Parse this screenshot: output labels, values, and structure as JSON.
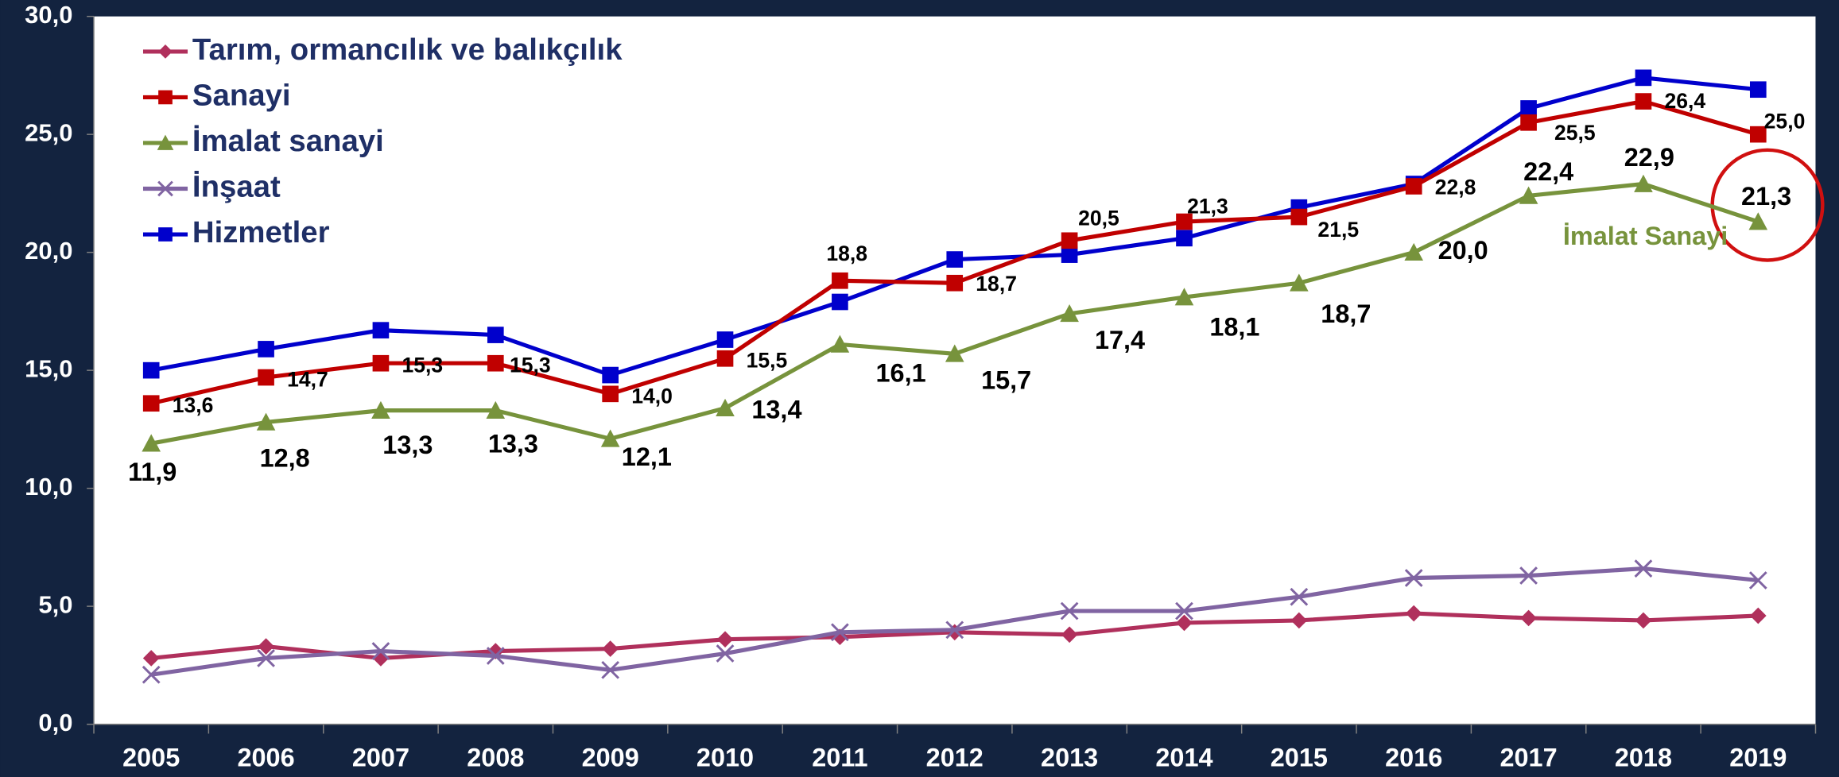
{
  "chart_data": {
    "type": "line",
    "categories": [
      "2005",
      "2006",
      "2007",
      "2008",
      "2009",
      "2010",
      "2011",
      "2012",
      "2013",
      "2014",
      "2015",
      "2016",
      "2017",
      "2018",
      "2019"
    ],
    "ylim": [
      0,
      30
    ],
    "yticks": [
      {
        "value": 0,
        "label": "0,0"
      },
      {
        "value": 5,
        "label": "5,0"
      },
      {
        "value": 10,
        "label": "10,0"
      },
      {
        "value": 15,
        "label": "15,0"
      },
      {
        "value": 20,
        "label": "20,0"
      },
      {
        "value": 25,
        "label": "25,0"
      },
      {
        "value": 30,
        "label": "30,0"
      }
    ],
    "legend": "upper left",
    "series": [
      {
        "name": "Tarım, ormancılık ve balıkçılık",
        "color": "#b0305c",
        "marker": "diamond",
        "values": [
          2.8,
          3.3,
          2.8,
          3.1,
          3.2,
          3.6,
          3.7,
          3.9,
          3.8,
          4.3,
          4.4,
          4.7,
          4.5,
          4.4,
          4.6
        ]
      },
      {
        "name": "Sanayi",
        "color": "#c00000",
        "marker": "square",
        "values": [
          13.6,
          14.7,
          15.3,
          15.3,
          14.0,
          15.5,
          18.8,
          18.7,
          20.5,
          21.3,
          21.5,
          22.8,
          25.5,
          26.4,
          25.0
        ],
        "value_labels": [
          "13,6",
          "14,7",
          "15,3",
          "15,3",
          "14,0",
          "15,5",
          "18,8",
          "18,7",
          "20,5",
          "21,3",
          "21,5",
          "22,8",
          "25,5",
          "26,4",
          "25,0"
        ]
      },
      {
        "name": "İmalat sanayi",
        "color": "#77933c",
        "marker": "triangle",
        "values": [
          11.9,
          12.8,
          13.3,
          13.3,
          12.1,
          13.4,
          16.1,
          15.7,
          17.4,
          18.1,
          18.7,
          20.0,
          22.4,
          22.9,
          21.3
        ],
        "value_labels": [
          "11,9",
          "12,8",
          "13,3",
          "13,3",
          "12,1",
          "13,4",
          "16,1",
          "15,7",
          "17,4",
          "18,1",
          "18,7",
          "20,0",
          "22,4",
          "22,9",
          "21,3"
        ]
      },
      {
        "name": "İnşaat",
        "color": "#8064a2",
        "marker": "x",
        "values": [
          2.1,
          2.8,
          3.1,
          2.9,
          2.3,
          3.0,
          3.9,
          4.0,
          4.8,
          4.8,
          5.4,
          6.2,
          6.3,
          6.6,
          6.1
        ]
      },
      {
        "name": "Hizmetler",
        "color": "#0000cc",
        "marker": "square",
        "values": [
          15.0,
          15.9,
          16.7,
          16.5,
          14.8,
          16.3,
          17.9,
          19.7,
          19.9,
          20.6,
          21.9,
          22.9,
          26.1,
          27.4,
          26.9
        ]
      }
    ],
    "annotations": [
      {
        "text": "İmalat Sanayi",
        "color": "#77933c"
      }
    ]
  }
}
